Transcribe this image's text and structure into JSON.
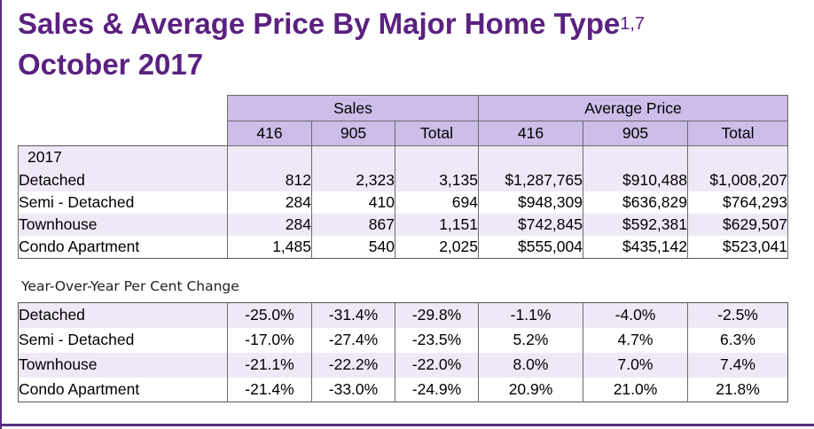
{
  "title": {
    "line1": "Sales & Average Price By Major Home Type",
    "footnote": "1,7",
    "line2": "October 2017"
  },
  "headers": {
    "sales": "Sales",
    "avg_price": "Average Price",
    "sales_cols": [
      "416",
      "905",
      "Total"
    ],
    "price_cols": [
      "416",
      "905",
      "Total"
    ]
  },
  "year_label": "2017",
  "rows": [
    {
      "type": "Detached",
      "sales": [
        "812",
        "2,323",
        "3,135"
      ],
      "price": [
        "$1,287,765",
        "$910,488",
        "$1,008,207"
      ]
    },
    {
      "type": "Semi - Detached",
      "sales": [
        "284",
        "410",
        "694"
      ],
      "price": [
        "$948,309",
        "$636,829",
        "$764,293"
      ]
    },
    {
      "type": "Townhouse",
      "sales": [
        "284",
        "867",
        "1,151"
      ],
      "price": [
        "$742,845",
        "$592,381",
        "$629,507"
      ]
    },
    {
      "type": "Condo Apartment",
      "sales": [
        "1,485",
        "540",
        "2,025"
      ],
      "price": [
        "$555,004",
        "$435,142",
        "$523,041"
      ]
    }
  ],
  "yoy_title": "Year-Over-Year Per Cent Change",
  "yoy_rows": [
    {
      "type": "Detached",
      "sales": [
        "-25.0%",
        "-31.4%",
        "-29.8%"
      ],
      "price": [
        "-1.1%",
        "-4.0%",
        "-2.5%"
      ]
    },
    {
      "type": "Semi - Detached",
      "sales": [
        "-17.0%",
        "-27.4%",
        "-23.5%"
      ],
      "price": [
        "5.2%",
        "4.7%",
        "6.3%"
      ]
    },
    {
      "type": "Townhouse",
      "sales": [
        "-21.1%",
        "-22.2%",
        "-22.0%"
      ],
      "price": [
        "8.0%",
        "7.0%",
        "7.4%"
      ]
    },
    {
      "type": "Condo Apartment",
      "sales": [
        "-21.4%",
        "-33.0%",
        "-24.9%"
      ],
      "price": [
        "20.9%",
        "21.0%",
        "21.8%"
      ]
    }
  ],
  "colors": {
    "title": "#5b2180",
    "header_fill": "#cdbde9",
    "row_shade": "#efe9f7",
    "frame": "#5b2c83"
  }
}
